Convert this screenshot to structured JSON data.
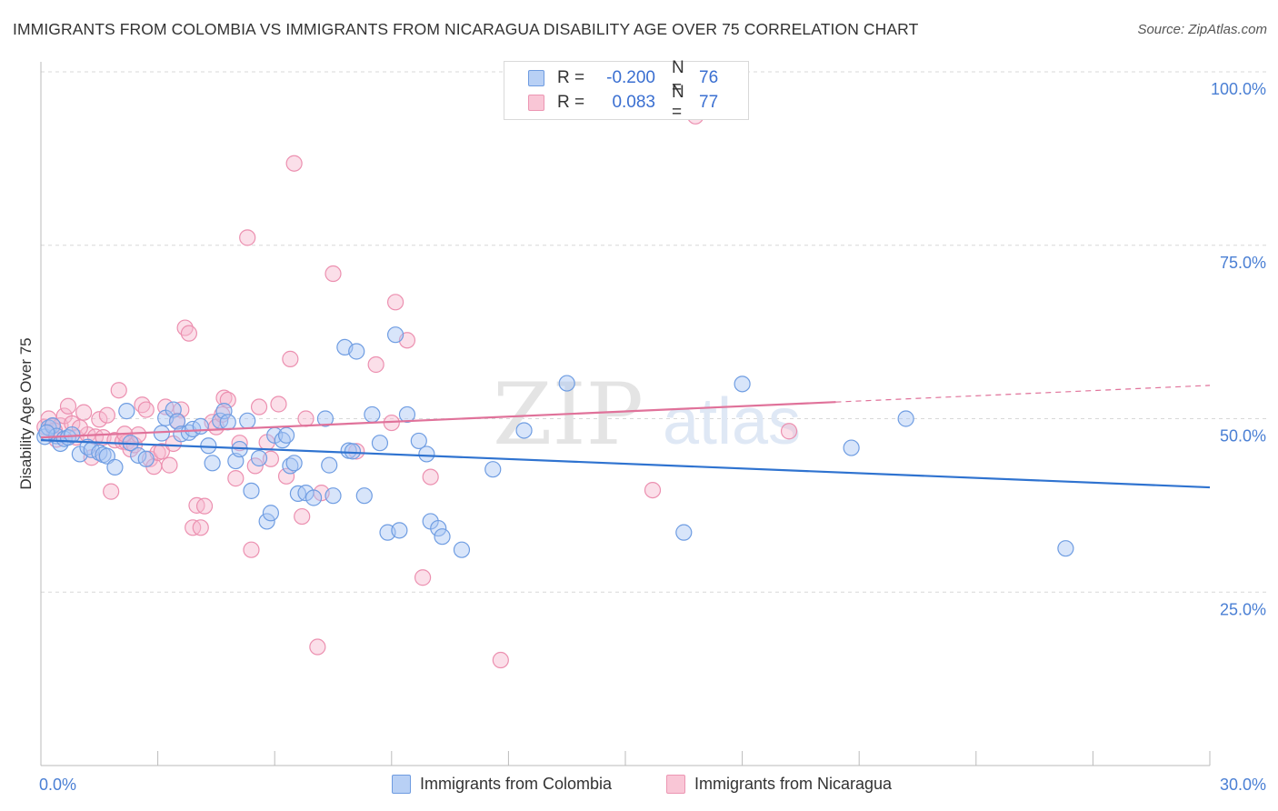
{
  "title": "IMMIGRANTS FROM COLOMBIA VS IMMIGRANTS FROM NICARAGUA DISABILITY AGE OVER 75 CORRELATION CHART",
  "source": "Source: ZipAtlas.com",
  "watermark": {
    "zip": "ZIP",
    "atlas": "atlas"
  },
  "legend": {
    "rows": [
      {
        "r_label": "R =",
        "r_value": "-0.200",
        "n_label": "N =",
        "n_value": "76"
      },
      {
        "r_label": "R =",
        "r_value": "0.083",
        "n_label": "N =",
        "n_value": "77"
      }
    ]
  },
  "bottom_legend": [
    "Immigrants from Colombia",
    "Immigrants from Nicaragua"
  ],
  "colors": {
    "colombia_fill": "#a9c6f3",
    "colombia_stroke": "#6f9de2",
    "colombia_line": "#2f73d0",
    "nicaragua_fill": "#f7b9cf",
    "nicaragua_stroke": "#ec90b0",
    "nicaragua_line": "#e0729a",
    "axis_text": "#4a7fd4",
    "grid": "#d8d8d8"
  },
  "chart_data": {
    "type": "scatter",
    "title": "IMMIGRANTS FROM COLOMBIA VS IMMIGRANTS FROM NICARAGUA DISABILITY AGE OVER 75 CORRELATION CHART",
    "xlabel": "",
    "ylabel": "Disability Age Over 75",
    "xlim": [
      0,
      30
    ],
    "ylim": [
      0,
      100
    ],
    "x_tick_labels": [
      "0.0%",
      "30.0%"
    ],
    "y_ticks": [
      25,
      50,
      75,
      100
    ],
    "y_tick_labels": [
      "25.0%",
      "50.0%",
      "75.0%",
      "100.0%"
    ],
    "grid": true,
    "legend_position": "top-center",
    "series": [
      {
        "name": "Immigrants from Colombia",
        "r": -0.2,
        "n": 76,
        "trend": {
          "x": [
            0,
            30
          ],
          "y": [
            46.9,
            40.1
          ]
        },
        "points": [
          [
            0.1,
            47.4
          ],
          [
            0.2,
            48.7
          ],
          [
            0.3,
            49.0
          ],
          [
            0.4,
            47.5
          ],
          [
            0.5,
            46.4
          ],
          [
            0.6,
            47.1
          ],
          [
            0.7,
            47.3
          ],
          [
            0.8,
            47.7
          ],
          [
            1.0,
            44.9
          ],
          [
            1.2,
            45.9
          ],
          [
            1.3,
            45.5
          ],
          [
            1.5,
            45.1
          ],
          [
            1.6,
            44.8
          ],
          [
            1.7,
            44.6
          ],
          [
            1.9,
            43.0
          ],
          [
            2.2,
            51.1
          ],
          [
            2.3,
            46.5
          ],
          [
            2.5,
            44.7
          ],
          [
            2.7,
            44.2
          ],
          [
            3.1,
            47.9
          ],
          [
            3.2,
            50.1
          ],
          [
            3.4,
            51.3
          ],
          [
            3.5,
            49.6
          ],
          [
            3.6,
            47.8
          ],
          [
            3.8,
            48.0
          ],
          [
            3.9,
            48.5
          ],
          [
            4.1,
            48.9
          ],
          [
            4.3,
            46.1
          ],
          [
            4.4,
            43.6
          ],
          [
            4.6,
            49.7
          ],
          [
            4.7,
            51.1
          ],
          [
            4.8,
            49.5
          ],
          [
            5.0,
            43.9
          ],
          [
            5.1,
            45.6
          ],
          [
            5.3,
            49.7
          ],
          [
            5.4,
            39.6
          ],
          [
            5.6,
            44.3
          ],
          [
            5.8,
            35.2
          ],
          [
            5.9,
            36.4
          ],
          [
            6.0,
            47.6
          ],
          [
            6.2,
            46.9
          ],
          [
            6.3,
            47.6
          ],
          [
            6.4,
            43.2
          ],
          [
            6.5,
            43.6
          ],
          [
            6.6,
            39.2
          ],
          [
            6.8,
            39.3
          ],
          [
            7.0,
            38.6
          ],
          [
            7.3,
            50.0
          ],
          [
            7.4,
            43.3
          ],
          [
            7.5,
            38.9
          ],
          [
            7.8,
            60.3
          ],
          [
            7.9,
            45.4
          ],
          [
            8.0,
            45.3
          ],
          [
            8.1,
            59.7
          ],
          [
            8.3,
            38.9
          ],
          [
            8.5,
            50.6
          ],
          [
            8.7,
            46.5
          ],
          [
            8.9,
            33.6
          ],
          [
            9.1,
            62.1
          ],
          [
            9.2,
            33.9
          ],
          [
            9.4,
            50.6
          ],
          [
            9.7,
            46.8
          ],
          [
            9.9,
            44.9
          ],
          [
            10.0,
            35.2
          ],
          [
            10.2,
            34.2
          ],
          [
            10.3,
            33.0
          ],
          [
            10.8,
            31.1
          ],
          [
            11.6,
            42.7
          ],
          [
            12.4,
            48.3
          ],
          [
            13.5,
            55.1
          ],
          [
            16.5,
            33.6
          ],
          [
            18.0,
            55.0
          ],
          [
            20.8,
            45.8
          ],
          [
            22.2,
            50.0
          ],
          [
            26.3,
            31.3
          ],
          [
            0.15,
            48.0
          ]
        ]
      },
      {
        "name": "Immigrants from Nicaragua",
        "r": 0.083,
        "n": 77,
        "trend": {
          "x": [
            0,
            20.4
          ],
          "y": [
            47.3,
            52.4
          ]
        },
        "trend_dashed": {
          "x": [
            20.4,
            30
          ],
          "y": [
            52.4,
            54.8
          ]
        },
        "points": [
          [
            0.1,
            48.8
          ],
          [
            0.2,
            50.0
          ],
          [
            0.3,
            48.9
          ],
          [
            0.4,
            47.0
          ],
          [
            0.5,
            49.0
          ],
          [
            0.6,
            50.4
          ],
          [
            0.7,
            51.8
          ],
          [
            0.8,
            49.3
          ],
          [
            0.9,
            47.3
          ],
          [
            1.1,
            50.9
          ],
          [
            1.2,
            47.7
          ],
          [
            1.3,
            44.4
          ],
          [
            1.4,
            47.4
          ],
          [
            1.5,
            49.9
          ],
          [
            1.6,
            47.3
          ],
          [
            1.7,
            50.5
          ],
          [
            1.8,
            39.5
          ],
          [
            1.9,
            46.9
          ],
          [
            2.0,
            54.1
          ],
          [
            2.1,
            46.7
          ],
          [
            2.2,
            46.6
          ],
          [
            2.3,
            45.6
          ],
          [
            2.4,
            46.2
          ],
          [
            2.5,
            47.7
          ],
          [
            2.6,
            52.0
          ],
          [
            2.7,
            51.3
          ],
          [
            2.8,
            44.2
          ],
          [
            2.9,
            43.1
          ],
          [
            3.0,
            45.1
          ],
          [
            3.1,
            45.3
          ],
          [
            3.2,
            51.7
          ],
          [
            3.3,
            43.3
          ],
          [
            3.4,
            46.4
          ],
          [
            3.5,
            49.7
          ],
          [
            3.6,
            51.3
          ],
          [
            3.7,
            63.1
          ],
          [
            3.8,
            62.3
          ],
          [
            3.9,
            34.3
          ],
          [
            4.0,
            37.5
          ],
          [
            4.1,
            34.3
          ],
          [
            4.2,
            37.4
          ],
          [
            4.4,
            49.5
          ],
          [
            4.5,
            48.8
          ],
          [
            4.7,
            53.0
          ],
          [
            4.8,
            52.7
          ],
          [
            5.0,
            41.4
          ],
          [
            5.1,
            46.5
          ],
          [
            5.3,
            76.1
          ],
          [
            5.4,
            31.1
          ],
          [
            5.5,
            43.2
          ],
          [
            5.6,
            51.7
          ],
          [
            5.8,
            46.6
          ],
          [
            5.9,
            44.2
          ],
          [
            6.1,
            52.1
          ],
          [
            6.3,
            41.7
          ],
          [
            6.4,
            58.6
          ],
          [
            6.5,
            86.8
          ],
          [
            6.7,
            35.9
          ],
          [
            6.8,
            50.0
          ],
          [
            7.1,
            17.1
          ],
          [
            7.2,
            39.3
          ],
          [
            7.5,
            70.9
          ],
          [
            8.1,
            45.3
          ],
          [
            8.6,
            57.8
          ],
          [
            9.0,
            49.4
          ],
          [
            9.1,
            66.8
          ],
          [
            9.4,
            61.3
          ],
          [
            9.8,
            27.1
          ],
          [
            10.0,
            41.6
          ],
          [
            11.8,
            15.2
          ],
          [
            15.7,
            39.7
          ],
          [
            16.8,
            93.6
          ],
          [
            19.2,
            48.2
          ],
          [
            0.35,
            48.3
          ],
          [
            1.0,
            48.7
          ],
          [
            2.15,
            47.8
          ],
          [
            4.65,
            50.6
          ]
        ]
      }
    ]
  }
}
